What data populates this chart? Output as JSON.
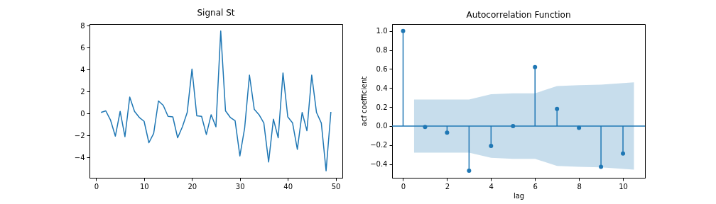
{
  "chart_data": [
    {
      "type": "line",
      "title": "Signal St",
      "x": [
        1,
        2,
        3,
        4,
        5,
        6,
        7,
        8,
        9,
        10,
        11,
        12,
        13,
        14,
        15,
        16,
        17,
        18,
        19,
        20,
        21,
        22,
        23,
        24,
        25,
        26,
        27,
        28,
        29,
        30,
        31,
        32,
        33,
        34,
        35,
        36,
        37,
        38,
        39,
        40,
        41,
        42,
        43,
        44,
        45,
        46,
        47,
        48,
        49
      ],
      "series": [
        {
          "color": "#1f77b4",
          "values": [
            0.1,
            0.25,
            -0.6,
            -2.05,
            0.2,
            -2.1,
            1.5,
            0.2,
            -0.35,
            -0.7,
            -2.65,
            -1.8,
            1.15,
            0.75,
            -0.25,
            -0.3,
            -2.2,
            -1.2,
            0.1,
            4.05,
            -0.2,
            -0.25,
            -1.9,
            -0.1,
            -1.2,
            7.5,
            0.25,
            -0.35,
            -0.65,
            -3.85,
            -1.3,
            3.5,
            0.4,
            -0.1,
            -0.85,
            -4.4,
            -0.5,
            -2.2,
            3.7,
            -0.3,
            -0.85,
            -3.25,
            0.1,
            -1.55,
            3.5,
            0.1,
            -0.85,
            -5.2,
            0.15
          ]
        }
      ],
      "xlim": [
        -1.4,
        51.4
      ],
      "ylim": [
        -5.835,
        8.135
      ],
      "xticks": [
        0,
        10,
        20,
        30,
        40,
        50
      ],
      "yticks": [
        {
          "value": -4,
          "label": "−4"
        },
        {
          "value": -2,
          "label": "−2"
        },
        0,
        2,
        4,
        6,
        8
      ],
      "grid": false,
      "marker": "none"
    },
    {
      "type": "lollipop",
      "title": "Autocorrelation Function",
      "xlabel": "lag",
      "ylabel": "acf coefficient",
      "series": [
        {
          "type": "line",
          "color": "#1f77b4",
          "marker": "none",
          "x": [
            -0.5,
            0.5,
            2,
            3,
            4,
            5,
            6,
            7,
            8,
            9,
            10.5,
            11
          ],
          "values": [
            0,
            0,
            0,
            0,
            0,
            0,
            0,
            0,
            0,
            0,
            0,
            0
          ],
          "lower": [
            null,
            -0.28,
            -0.28,
            -0.28,
            -0.335,
            -0.345,
            -0.345,
            -0.42,
            -0.43,
            -0.435,
            -0.46,
            null
          ],
          "upper": [
            null,
            0.28,
            0.28,
            0.28,
            0.335,
            0.345,
            0.345,
            0.42,
            0.43,
            0.435,
            0.46,
            null
          ]
        },
        {
          "color": "#1f77b4",
          "x": [
            0,
            1,
            2,
            3,
            4,
            5,
            6,
            7,
            8,
            9,
            10
          ],
          "values": [
            1,
            -0.01,
            -0.07,
            -0.47,
            -0.21,
            0,
            0.62,
            0.18,
            -0.02,
            -0.43,
            -0.29
          ]
        }
      ],
      "xlim": [
        -0.5,
        11
      ],
      "ylim": [
        -0.545,
        1.0735
      ],
      "xticks": [
        0,
        2,
        4,
        6,
        8,
        10
      ],
      "yticks": [
        {
          "value": -0.4,
          "label": "−0.4"
        },
        {
          "value": -0.2,
          "label": "−0.2"
        },
        {
          "value": 0,
          "label": "0.0"
        },
        {
          "value": 0.2,
          "label": "0.2"
        },
        {
          "value": 0.4,
          "label": "0.4"
        },
        {
          "value": 0.6,
          "label": "0.6"
        },
        {
          "value": 0.8,
          "label": "0.8"
        },
        {
          "value": 1,
          "label": "1.0"
        }
      ],
      "grid": false,
      "marker": "circle"
    }
  ]
}
